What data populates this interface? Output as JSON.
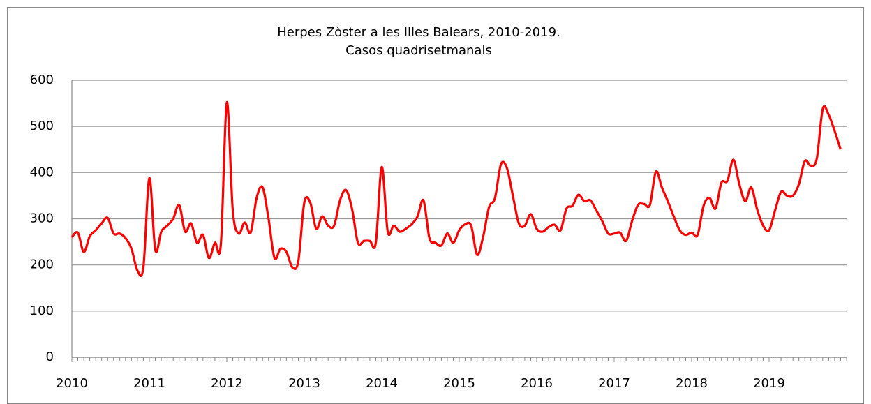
{
  "chart_data": {
    "type": "line",
    "title": "Herpes Zòster a les Illes Balears, 2010-2019.",
    "subtitle": "Casos quadrisetmanals",
    "categories": [
      "2010",
      null,
      null,
      null,
      null,
      null,
      null,
      null,
      null,
      null,
      null,
      null,
      null,
      "2011",
      null,
      null,
      null,
      null,
      null,
      null,
      null,
      null,
      null,
      null,
      null,
      null,
      "2012",
      null,
      null,
      null,
      null,
      null,
      null,
      null,
      null,
      null,
      null,
      null,
      null,
      "2013",
      null,
      null,
      null,
      null,
      null,
      null,
      null,
      null,
      null,
      null,
      null,
      null,
      "2014",
      null,
      null,
      null,
      null,
      null,
      null,
      null,
      null,
      null,
      null,
      null,
      null,
      "2015",
      null,
      null,
      null,
      null,
      null,
      null,
      null,
      null,
      null,
      null,
      null,
      null,
      "2016",
      null,
      null,
      null,
      null,
      null,
      null,
      null,
      null,
      null,
      null,
      null,
      null,
      "2017",
      null,
      null,
      null,
      null,
      null,
      null,
      null,
      null,
      null,
      null,
      null,
      null,
      "2018",
      null,
      null,
      null,
      null,
      null,
      null,
      null,
      null,
      null,
      null,
      null,
      null,
      "2019",
      null,
      null,
      null,
      null,
      null,
      null,
      null,
      null,
      null,
      null,
      null,
      null
    ],
    "series": [
      {
        "color": "#ff0000",
        "values": [
          260,
          270,
          228,
          262,
          275,
          290,
          302,
          268,
          268,
          258,
          235,
          188,
          195,
          388,
          232,
          272,
          285,
          300,
          330,
          272,
          290,
          248,
          265,
          215,
          248,
          245,
          552,
          318,
          268,
          292,
          270,
          345,
          368,
          300,
          215,
          235,
          228,
          195,
          208,
          335,
          335,
          278,
          305,
          285,
          285,
          340,
          362,
          322,
          248,
          252,
          252,
          248,
          412,
          272,
          285,
          272,
          278,
          288,
          305,
          340,
          258,
          248,
          242,
          268,
          248,
          275,
          288,
          285,
          222,
          260,
          325,
          345,
          418,
          410,
          350,
          290,
          285,
          310,
          278,
          272,
          282,
          287,
          275,
          322,
          328,
          352,
          338,
          340,
          318,
          295,
          268,
          268,
          270,
          252,
          295,
          330,
          332,
          330,
          402,
          368,
          338,
          305,
          275,
          265,
          270,
          265,
          328,
          345,
          322,
          378,
          382,
          428,
          375,
          338,
          368,
          320,
          285,
          275,
          318,
          358,
          350,
          350,
          375,
          425,
          415,
          430,
          538,
          525,
          490,
          450
        ]
      }
    ],
    "ylim": [
      0,
      600
    ],
    "yticks": [
      0,
      100,
      200,
      300,
      400,
      500,
      600
    ],
    "grid": true
  }
}
